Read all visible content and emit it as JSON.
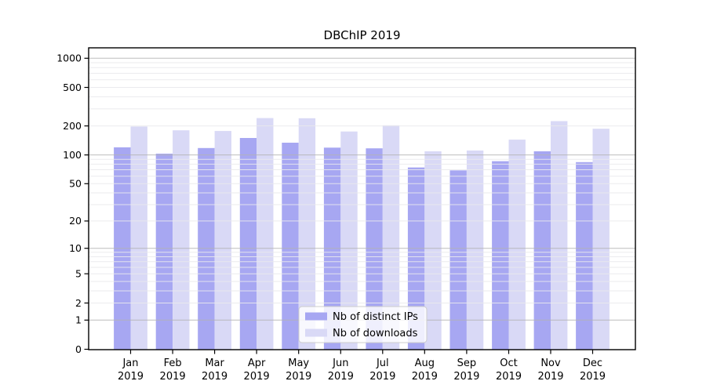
{
  "chart_data": {
    "type": "bar",
    "title": "DBChIP 2019",
    "categories": [
      "Jan 2019",
      "Feb 2019",
      "Mar 2019",
      "Apr 2019",
      "May 2019",
      "Jun 2019",
      "Jul 2019",
      "Aug 2019",
      "Sep 2019",
      "Oct 2019",
      "Nov 2019",
      "Dec 2019"
    ],
    "months": [
      "Jan",
      "Feb",
      "Mar",
      "Apr",
      "May",
      "Jun",
      "Jul",
      "Aug",
      "Sep",
      "Oct",
      "Nov",
      "Dec"
    ],
    "year": "2019",
    "series": [
      {
        "name": "Nb of distinct IPs",
        "color": "#a7a7f2",
        "values": [
          120,
          103,
          118,
          150,
          134,
          119,
          117,
          74,
          69,
          86,
          109,
          84
        ]
      },
      {
        "name": "Nb of downloads",
        "color": "#d9d9f6",
        "values": [
          197,
          180,
          177,
          241,
          240,
          175,
          203,
          109,
          111,
          144,
          224,
          187
        ]
      }
    ],
    "xlabel": "",
    "ylabel": "",
    "y_scale": "log10(1+x)",
    "y_ticks": [
      0,
      1,
      2,
      5,
      10,
      20,
      50,
      100,
      200,
      500,
      1000
    ],
    "ylim": [
      0,
      1280
    ],
    "grid": true,
    "legend_position": "lower-center"
  },
  "colors": {
    "background": "#ffffff",
    "bar_ips": "#a7a7f2",
    "bar_downloads": "#d9d9f6",
    "grid_major": "#b3b3b3",
    "grid_minor": "#e9e9ec",
    "spine": "#000000",
    "legend_border": "#cccccc",
    "legend_bg": "#ffffff"
  }
}
